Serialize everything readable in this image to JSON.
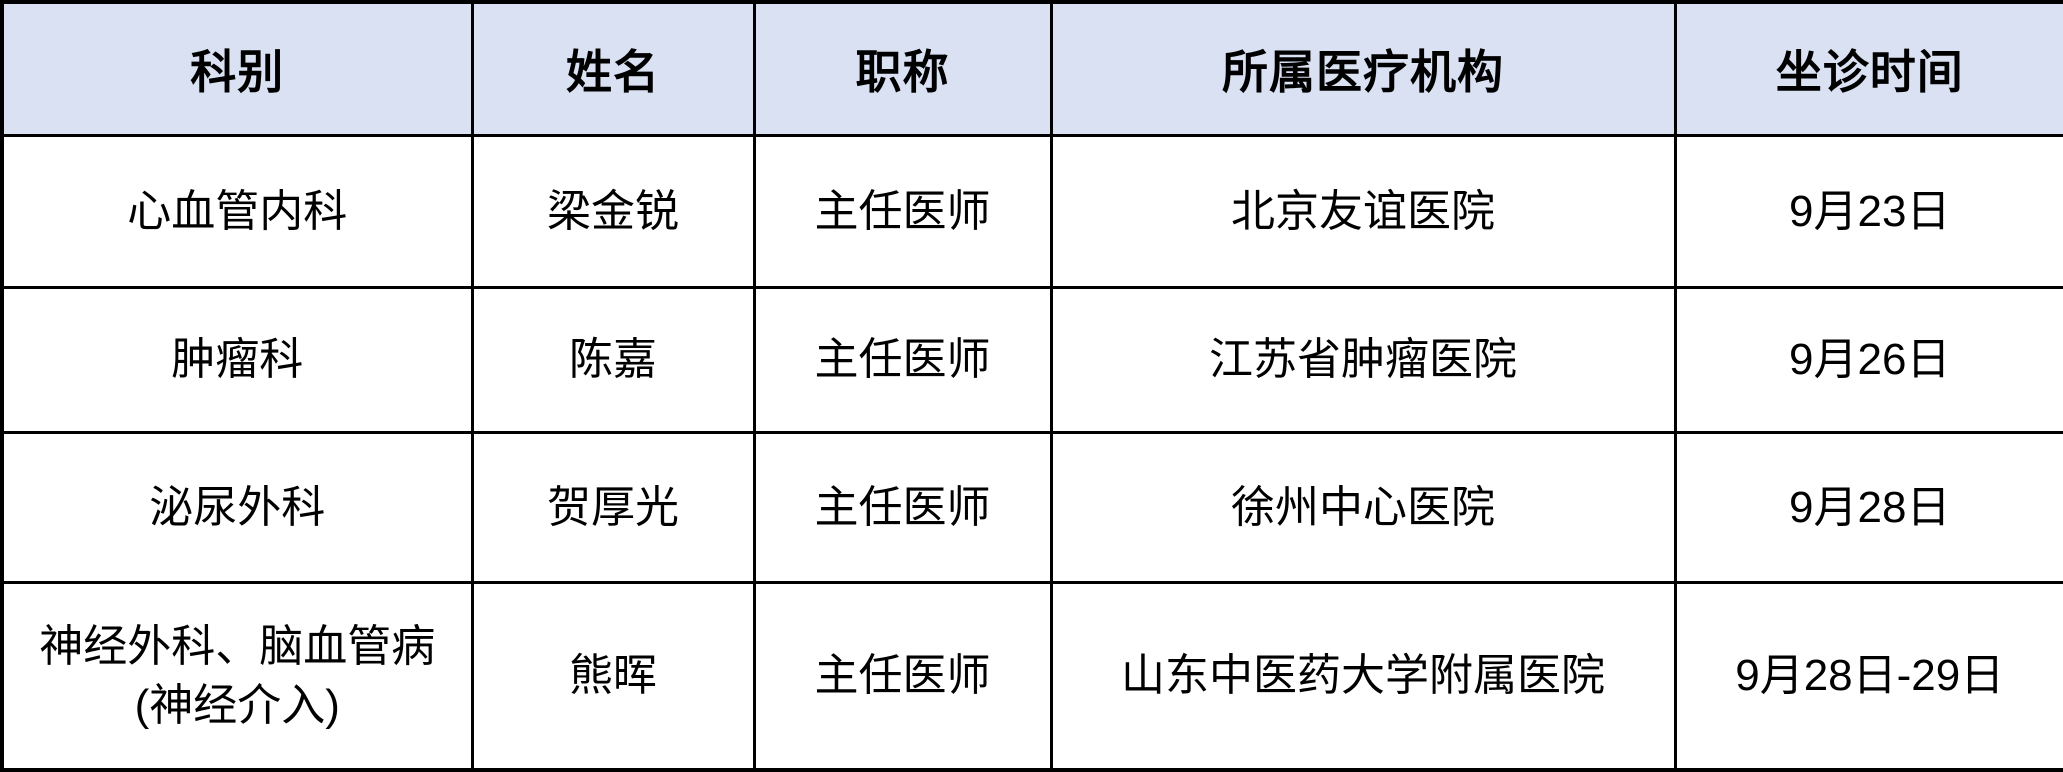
{
  "table": {
    "columns": [
      "科别",
      "姓名",
      "职称",
      "所属医疗机构",
      "坐诊时间"
    ],
    "rows": [
      [
        "心血管内科",
        "梁金锐",
        "主任医师",
        "北京友谊医院",
        "9月23日"
      ],
      [
        "肿瘤科",
        "陈嘉",
        "主任医师",
        "江苏省肿瘤医院",
        "9月26日"
      ],
      [
        "泌尿外科",
        "贺厚光",
        "主任医师",
        "徐州中心医院",
        "9月28日"
      ],
      [
        "神经外科、脑血管病\n(神经介入)",
        "熊晖",
        "主任医师",
        "山东中医药大学附属医院",
        "9月28日-29日"
      ]
    ]
  },
  "colors": {
    "header_bg": "#D9E1F2",
    "body_bg": "#FFFFFF",
    "border": "#000000",
    "text": "#000000"
  }
}
